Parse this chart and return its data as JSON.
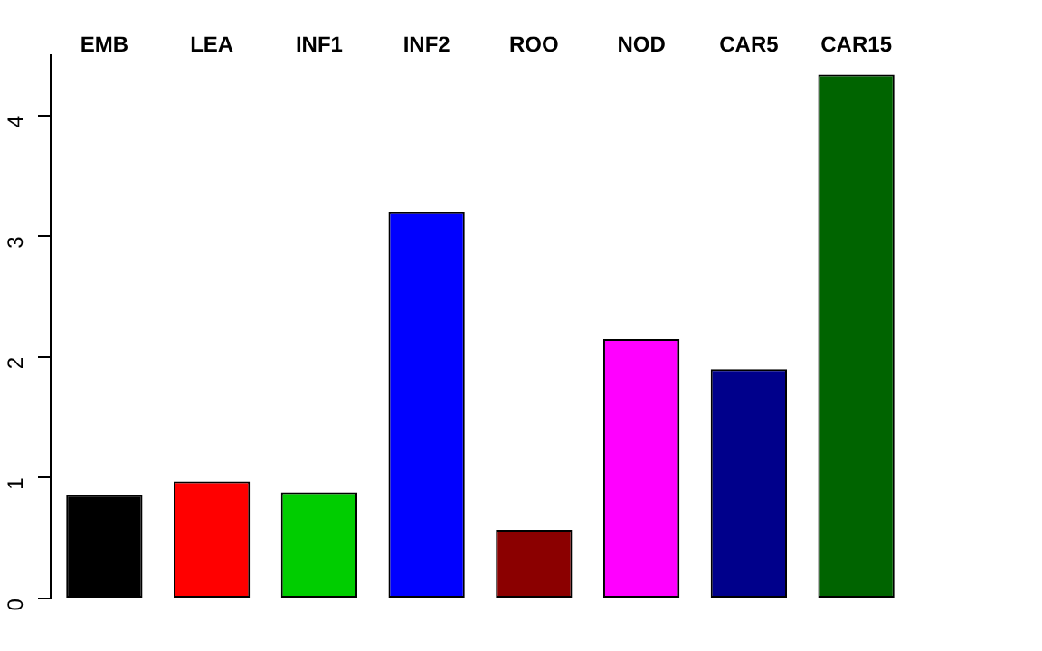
{
  "chart_data": {
    "type": "bar",
    "categories": [
      "EMB",
      "LEA",
      "INF1",
      "INF2",
      "ROO",
      "NOD",
      "CAR5",
      "CAR15"
    ],
    "values": [
      0.86,
      0.97,
      0.88,
      3.2,
      0.57,
      2.15,
      1.9,
      4.34
    ],
    "colors": [
      "#000000",
      "#ff0000",
      "#00cd00",
      "#0000ff",
      "#8b0000",
      "#ff00ff",
      "#00008b",
      "#006400"
    ],
    "ylim": [
      0,
      4.5
    ],
    "yticks": [
      0,
      1,
      2,
      3,
      4
    ]
  }
}
